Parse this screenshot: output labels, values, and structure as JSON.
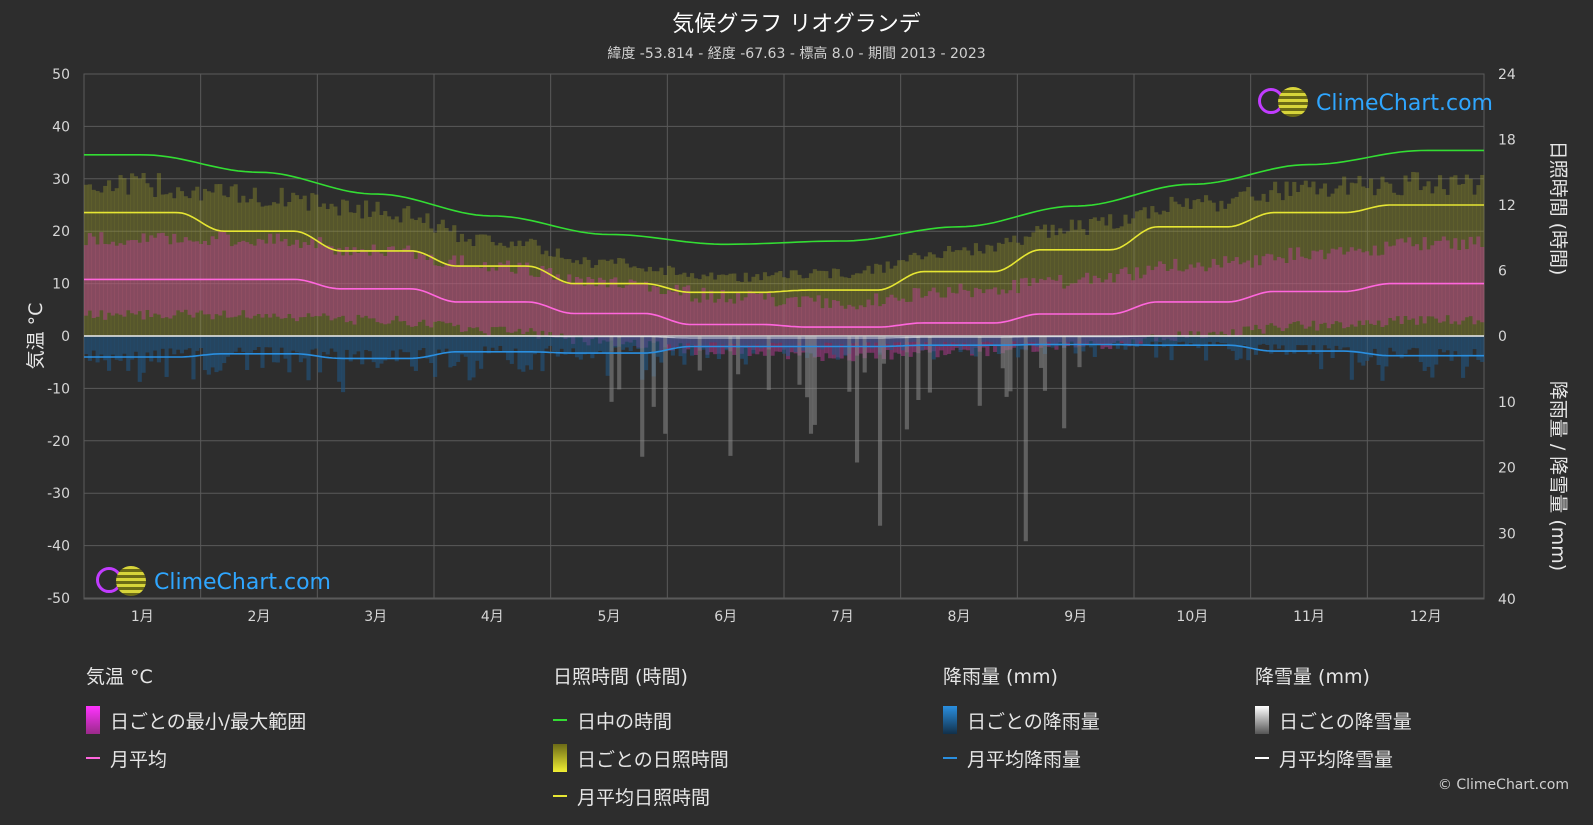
{
  "title": "気候グラフ リオグランデ",
  "subtitle": "緯度 -53.814 - 経度 -67.63 - 標高 8.0 - 期間 2013 - 2023",
  "left_axis_label": "気温 °C",
  "right_axis_label_top": "日照時間 (時間)",
  "right_axis_label_bottom": "降雨量 / 降雪量 (mm)",
  "logo_text": "ClimeChart.com",
  "copyright": "© ClimeChart.com",
  "legend": {
    "temperature": {
      "title": "気温 °C",
      "daily_range": "日ごとの最小/最大範囲",
      "monthly_avg": "月平均"
    },
    "sunshine": {
      "title": "日照時間 (時間)",
      "daylight": "日中の時間",
      "daily_sunshine": "日ごとの日照時間",
      "monthly_sunshine": "月平均日照時間"
    },
    "rain": {
      "title": "降雨量 (mm)",
      "daily_rain": "日ごとの降雨量",
      "monthly_rain": "月平均降雨量"
    },
    "snow": {
      "title": "降雪量 (mm)",
      "daily_snow": "日ごとの降雪量",
      "monthly_snow": "月平均降雪量"
    }
  },
  "colors": {
    "background": "#2d2d2d",
    "grid": "#5a5a5a",
    "daylight": "#33dd33",
    "sunshine_avg": "#e6e633",
    "sunshine_fill": "#9a9a2c",
    "temp_avg": "#ff66dd",
    "temp_range": "#c23c9e",
    "rain_avg": "#2a8fe0",
    "rain_bar": "#1f5a8a",
    "snow_bar": "#8a8a8a",
    "snow_avg": "#ffffff"
  },
  "chart_data": {
    "type": "line",
    "categories": [
      "1月",
      "2月",
      "3月",
      "4月",
      "5月",
      "6月",
      "7月",
      "8月",
      "9月",
      "10月",
      "11月",
      "12月"
    ],
    "y_left": {
      "label": "気温 °C",
      "range": [
        -50,
        50
      ],
      "ticks": [
        50,
        40,
        30,
        20,
        10,
        0,
        -10,
        -20,
        -30,
        -40,
        -50
      ]
    },
    "y_right_sunshine": {
      "label": "日照時間 (時間)",
      "range": [
        0,
        24
      ],
      "ticks": [
        24,
        18,
        12,
        6,
        0
      ]
    },
    "y_right_precip": {
      "label": "降雨量 / 降雪量 (mm)",
      "range": [
        0,
        40
      ],
      "ticks": [
        0,
        10,
        20,
        30,
        40
      ]
    },
    "series": [
      {
        "name": "日中の時間",
        "unit": "hours",
        "values": [
          16.6,
          15.0,
          13.0,
          11.0,
          9.3,
          8.4,
          8.7,
          10.0,
          11.9,
          13.9,
          15.7,
          17.0
        ]
      },
      {
        "name": "月平均日照時間",
        "unit": "hours",
        "values": [
          11.3,
          9.6,
          7.8,
          6.4,
          4.8,
          4.0,
          4.2,
          5.9,
          7.9,
          10.0,
          11.3,
          12.0
        ]
      },
      {
        "name": "月平均",
        "unit": "°C",
        "values": [
          10.8,
          10.8,
          9.0,
          6.5,
          4.3,
          2.2,
          1.7,
          2.5,
          4.2,
          6.5,
          8.5,
          10.0
        ]
      },
      {
        "name": "月平均降雨量",
        "unit": "mm",
        "values": [
          3.2,
          2.7,
          3.4,
          2.4,
          2.6,
          1.6,
          1.6,
          1.4,
          1.3,
          1.4,
          2.3,
          3.0
        ]
      },
      {
        "name": "月平均降雪量",
        "unit": "mm",
        "values": [
          0,
          0,
          0,
          0,
          0.1,
          0.3,
          0.3,
          0.2,
          0.1,
          0,
          0,
          0
        ]
      }
    ],
    "daily_temp_range_monthly": [
      {
        "min": 5,
        "max": 17
      },
      {
        "min": 5,
        "max": 17
      },
      {
        "min": 4,
        "max": 15
      },
      {
        "min": 2,
        "max": 12
      },
      {
        "min": 0,
        "max": 9
      },
      {
        "min": -2,
        "max": 6
      },
      {
        "min": -3,
        "max": 5
      },
      {
        "min": -2,
        "max": 7
      },
      {
        "min": -1,
        "max": 9
      },
      {
        "min": 1,
        "max": 12
      },
      {
        "min": 3,
        "max": 14
      },
      {
        "min": 4,
        "max": 16
      }
    ],
    "daily_sunshine_max_monthly": [
      15.0,
      13.8,
      12.5,
      9.5,
      7.2,
      5.8,
      6.2,
      8.4,
      10.8,
      13.2,
      14.5,
      15.2
    ],
    "grid": true
  }
}
